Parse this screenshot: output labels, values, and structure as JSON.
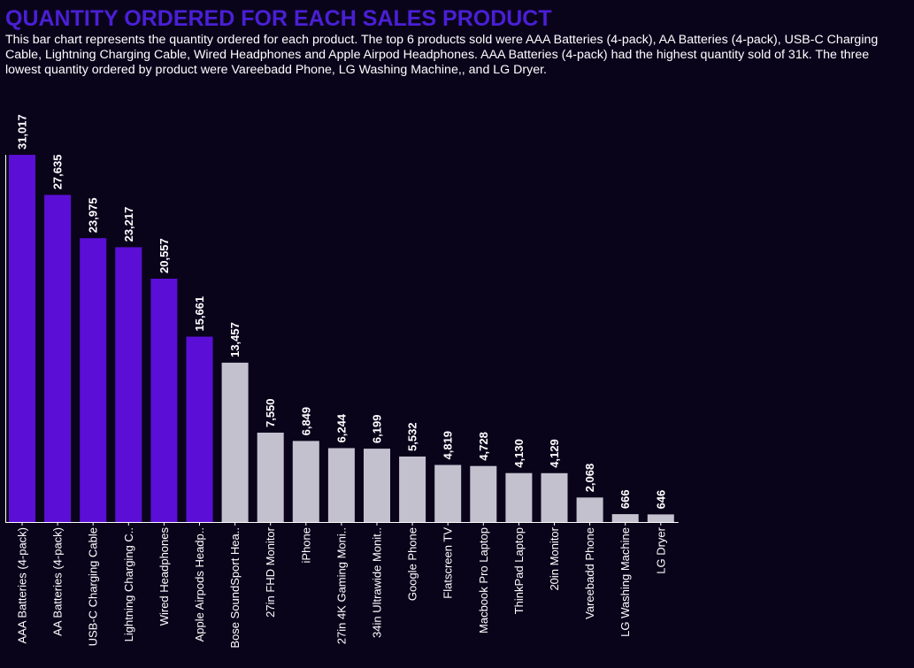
{
  "page": {
    "title": "QUANTITY ORDERED FOR EACH SALES PRODUCT",
    "description": "This bar chart represents the quantity ordered for each product. The top 6 products sold were AAA Batteries (4-pack), AA Batteries (4-pack), USB-C Charging Cable, Lightning Charging Cable, Wired Headphones and Apple Airpod Headphones. AAA Batteries (4-pack) had the highest quantity sold of 31k. The three lowest quantity ordered by product were Vareebadd Phone, LG Washing Machine,, and LG Dryer."
  },
  "colors": {
    "background": "#0a041b",
    "title": "#4a1fd6",
    "highlight_bar": "#5b0fd6",
    "other_bar": "#c4c1cf",
    "axis": "#ffffff"
  },
  "chart_data": {
    "type": "bar",
    "title": "QUANTITY ORDERED FOR EACH SALES PRODUCT",
    "xlabel": "",
    "ylabel": "",
    "ylim": [
      0,
      31017
    ],
    "grid": false,
    "categories": [
      "AAA Batteries (4-pack)",
      "AA Batteries (4-pack)",
      "USB-C Charging Cable",
      "Lightning Charging C..",
      "Wired Headphones",
      "Apple Airpods Headp..",
      "Bose SoundSport Hea..",
      "27in FHD Monitor",
      "iPhone",
      "27in 4K Gaming Moni..",
      "34in Ultrawide Monit..",
      "Google Phone",
      "Flatscreen TV",
      "Macbook Pro Laptop",
      "ThinkPad Laptop",
      "20in Monitor",
      "Vareebadd Phone",
      "LG Washing Machine",
      "LG Dryer"
    ],
    "values": [
      31017,
      27635,
      23975,
      23217,
      20557,
      15661,
      13457,
      7550,
      6849,
      6244,
      6199,
      5532,
      4819,
      4728,
      4130,
      4129,
      2068,
      666,
      646
    ],
    "value_labels": [
      "31,017",
      "27,635",
      "23,975",
      "23,217",
      "20,557",
      "15,661",
      "13,457",
      "7,550",
      "6,849",
      "6,244",
      "6,199",
      "5,532",
      "4,819",
      "4,728",
      "4,130",
      "4,129",
      "2,068",
      "666",
      "646"
    ],
    "highlighted": [
      true,
      true,
      true,
      true,
      true,
      true,
      false,
      false,
      false,
      false,
      false,
      false,
      false,
      false,
      false,
      false,
      false,
      false,
      false
    ]
  }
}
